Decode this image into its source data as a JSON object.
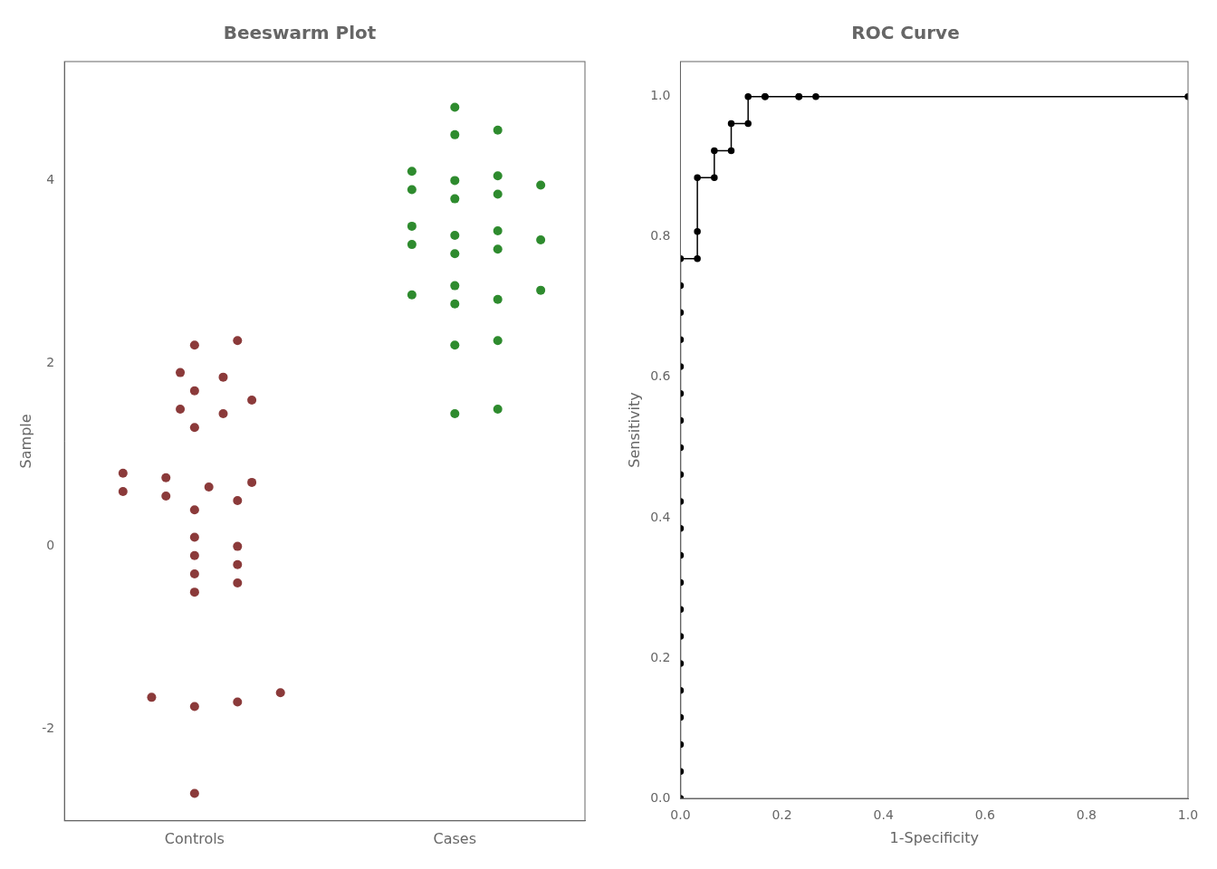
{
  "chart_data": [
    {
      "type": "beeswarm",
      "title": "Beeswarm Plot",
      "y_label": "Sample",
      "categories": [
        "Controls",
        "Cases"
      ],
      "colors": [
        "#8B3A3A",
        "#2E8B2E"
      ],
      "values": [
        [
          0.7,
          1.9,
          1.85,
          1.7,
          1.6,
          1.5,
          1.45,
          1.3,
          0.8,
          0.75,
          0.65,
          0.6,
          0.55,
          0.5,
          0.4,
          0.1,
          0.0,
          -0.1,
          -0.2,
          -0.3,
          -0.4,
          -0.5,
          -1.6,
          -1.65,
          -1.7,
          -1.75,
          2.25,
          2.2,
          -2.7
        ],
        [
          4.8,
          4.55,
          4.5,
          4.1,
          4.05,
          4.0,
          3.95,
          3.9,
          3.85,
          3.8,
          3.5,
          3.45,
          3.4,
          3.35,
          3.3,
          3.25,
          3.2,
          2.85,
          2.8,
          2.75,
          2.7,
          2.65,
          2.25,
          2.2,
          1.5,
          1.45
        ]
      ],
      "ylim": [
        -3.0,
        5.3
      ],
      "yticks": [
        -2,
        0,
        2,
        4
      ],
      "grid": false
    },
    {
      "type": "line",
      "title": "ROC Curve",
      "x_label": "1-Specificity",
      "y_label": "Sensitivity",
      "color": "#000000",
      "marker": "circle",
      "x": [
        0.0,
        0.0,
        0.0,
        0.0,
        0.0,
        0.0,
        0.0,
        0.0,
        0.0,
        0.0,
        0.0,
        0.0,
        0.0,
        0.0,
        0.0,
        0.0,
        0.0,
        0.0,
        0.0,
        0.0,
        0.0,
        0.0333,
        0.0333,
        0.0333,
        0.0667,
        0.0667,
        0.1,
        0.1,
        0.1333,
        0.1333,
        0.1667,
        0.1667,
        0.2333,
        0.2333,
        0.2667,
        1.0
      ],
      "values": [
        0.0,
        0.0385,
        0.0769,
        0.1154,
        0.1538,
        0.1923,
        0.2308,
        0.2692,
        0.3077,
        0.3462,
        0.3846,
        0.4231,
        0.4615,
        0.5,
        0.5385,
        0.5769,
        0.6154,
        0.6538,
        0.6923,
        0.7308,
        0.7692,
        0.7692,
        0.8077,
        0.8846,
        0.8846,
        0.9231,
        0.9231,
        0.9615,
        0.9615,
        1.0,
        1.0,
        1.0,
        1.0,
        1.0,
        1.0,
        1.0
      ],
      "xlim": [
        0.0,
        1.0
      ],
      "ylim": [
        0.0,
        1.05
      ],
      "xticks": [
        {
          "value": 0,
          "label": "0.0"
        },
        0.2,
        0.4,
        0.6,
        0.8,
        {
          "value": 1,
          "label": "1.0"
        }
      ],
      "yticks": [
        {
          "value": 0,
          "label": "0.0"
        },
        0.2,
        0.4,
        0.6,
        0.8,
        {
          "value": 1,
          "label": "1.0"
        }
      ],
      "grid": false
    }
  ]
}
